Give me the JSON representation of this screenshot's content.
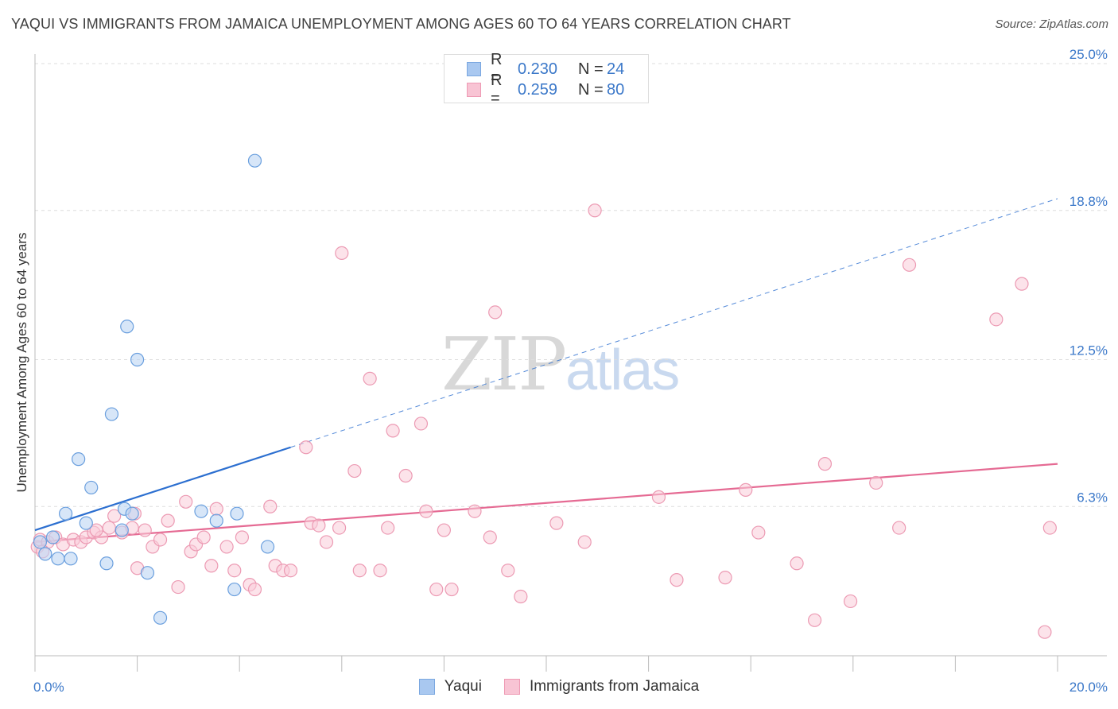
{
  "header": {
    "title": "YAQUI VS IMMIGRANTS FROM JAMAICA UNEMPLOYMENT AMONG AGES 60 TO 64 YEARS CORRELATION CHART",
    "source": "Source: ZipAtlas.com"
  },
  "watermark": {
    "zip": "ZIP",
    "atlas": "atlas"
  },
  "legend": {
    "rows": [
      {
        "r_label": "R =",
        "r_value": "0.230",
        "n_label": "N =",
        "n_value": "24",
        "color": "#a9c8f0",
        "border": "#7aa7e0"
      },
      {
        "r_label": "R =",
        "r_value": "0.259",
        "n_label": "N =",
        "n_value": "80",
        "color": "#f8c4d4",
        "border": "#ee9ab4"
      }
    ],
    "bottom": [
      "Yaqui",
      "Immigrants from Jamaica"
    ]
  },
  "colors": {
    "yaqui_fill": "#bcd5f3",
    "yaqui_stroke": "#6a9fde",
    "yaqui_line": "#2c6fd0",
    "jam_fill": "#f9ccd9",
    "jam_stroke": "#ec9ab3",
    "jam_line": "#e56a93",
    "axis_text": "#3b78c9",
    "grid": "#dddddd"
  },
  "chart_data": {
    "type": "scatter",
    "title": "YAQUI VS IMMIGRANTS FROM JAMAICA UNEMPLOYMENT AMONG AGES 60 TO 64 YEARS CORRELATION CHART",
    "xlabel": "",
    "ylabel": "Unemployment Among Ages 60 to 64 years",
    "xlim": [
      0,
      20
    ],
    "ylim": [
      0,
      25
    ],
    "x_tick_labels": [
      "0.0%",
      "20.0%"
    ],
    "y_ticks": [
      6.3,
      12.5,
      18.8,
      25.0
    ],
    "y_tick_labels": [
      "6.3%",
      "12.5%",
      "18.8%",
      "25.0%"
    ],
    "series": [
      {
        "name": "Yaqui",
        "R": 0.23,
        "N": 24,
        "trend": {
          "x0": 0,
          "y0": 5.3,
          "x1": 5.0,
          "y1": 8.8,
          "dash_to_x": 20,
          "dash_y": 19.3
        },
        "points": [
          [
            0.1,
            4.8
          ],
          [
            0.2,
            4.3
          ],
          [
            0.35,
            5.0
          ],
          [
            0.45,
            4.1
          ],
          [
            0.6,
            6.0
          ],
          [
            0.7,
            4.1
          ],
          [
            0.85,
            8.3
          ],
          [
            1.0,
            5.6
          ],
          [
            1.1,
            7.1
          ],
          [
            1.4,
            3.9
          ],
          [
            1.5,
            10.2
          ],
          [
            1.7,
            5.3
          ],
          [
            1.75,
            6.2
          ],
          [
            1.8,
            13.9
          ],
          [
            1.9,
            6.0
          ],
          [
            2.0,
            12.5
          ],
          [
            2.2,
            3.5
          ],
          [
            2.45,
            1.6
          ],
          [
            3.25,
            6.1
          ],
          [
            3.55,
            5.7
          ],
          [
            3.9,
            2.8
          ],
          [
            3.95,
            6.0
          ],
          [
            4.3,
            20.9
          ],
          [
            4.55,
            4.6
          ]
        ]
      },
      {
        "name": "Immigrants from Jamaica",
        "R": 0.259,
        "N": 80,
        "trend": {
          "x0": 0,
          "y0": 4.8,
          "x1": 20,
          "y1": 8.1
        },
        "points": [
          [
            0.05,
            4.6
          ],
          [
            0.1,
            4.9
          ],
          [
            0.25,
            4.8
          ],
          [
            0.4,
            5.0
          ],
          [
            0.55,
            4.7
          ],
          [
            0.75,
            4.9
          ],
          [
            0.9,
            4.8
          ],
          [
            1.0,
            5.0
          ],
          [
            1.15,
            5.2
          ],
          [
            1.3,
            5.0
          ],
          [
            1.45,
            5.4
          ],
          [
            1.55,
            5.9
          ],
          [
            1.7,
            5.2
          ],
          [
            1.9,
            5.4
          ],
          [
            1.95,
            6.0
          ],
          [
            2.0,
            3.7
          ],
          [
            2.15,
            5.3
          ],
          [
            2.3,
            4.6
          ],
          [
            2.45,
            4.9
          ],
          [
            2.6,
            5.7
          ],
          [
            2.8,
            2.9
          ],
          [
            2.95,
            6.5
          ],
          [
            3.05,
            4.4
          ],
          [
            3.15,
            4.7
          ],
          [
            3.3,
            5.0
          ],
          [
            3.45,
            3.8
          ],
          [
            3.55,
            6.2
          ],
          [
            3.75,
            4.6
          ],
          [
            3.9,
            3.6
          ],
          [
            4.05,
            5.0
          ],
          [
            4.2,
            3.0
          ],
          [
            4.3,
            2.8
          ],
          [
            4.6,
            6.3
          ],
          [
            4.7,
            3.8
          ],
          [
            4.85,
            3.6
          ],
          [
            5.0,
            3.6
          ],
          [
            5.3,
            8.8
          ],
          [
            5.4,
            5.6
          ],
          [
            5.55,
            5.5
          ],
          [
            5.7,
            4.8
          ],
          [
            5.95,
            5.4
          ],
          [
            6.0,
            17.0
          ],
          [
            6.25,
            7.8
          ],
          [
            6.35,
            3.6
          ],
          [
            6.55,
            11.7
          ],
          [
            6.75,
            3.6
          ],
          [
            6.9,
            5.4
          ],
          [
            7.0,
            9.5
          ],
          [
            7.25,
            7.6
          ],
          [
            7.55,
            9.8
          ],
          [
            7.65,
            6.1
          ],
          [
            7.85,
            2.8
          ],
          [
            8.0,
            5.3
          ],
          [
            8.15,
            2.8
          ],
          [
            8.6,
            6.1
          ],
          [
            8.9,
            5.0
          ],
          [
            9.0,
            14.5
          ],
          [
            9.25,
            3.6
          ],
          [
            9.5,
            2.5
          ],
          [
            10.2,
            5.6
          ],
          [
            10.75,
            4.8
          ],
          [
            10.95,
            18.8
          ],
          [
            12.2,
            6.7
          ],
          [
            12.55,
            3.2
          ],
          [
            13.5,
            3.3
          ],
          [
            13.9,
            7.0
          ],
          [
            14.15,
            5.2
          ],
          [
            14.9,
            3.9
          ],
          [
            15.25,
            1.5
          ],
          [
            15.45,
            8.1
          ],
          [
            15.95,
            2.3
          ],
          [
            16.45,
            7.3
          ],
          [
            16.9,
            5.4
          ],
          [
            17.1,
            16.5
          ],
          [
            18.8,
            14.2
          ],
          [
            19.3,
            15.7
          ],
          [
            19.85,
            5.4
          ],
          [
            19.75,
            1.0
          ],
          [
            0.15,
            4.4
          ],
          [
            1.2,
            5.3
          ]
        ]
      }
    ]
  }
}
